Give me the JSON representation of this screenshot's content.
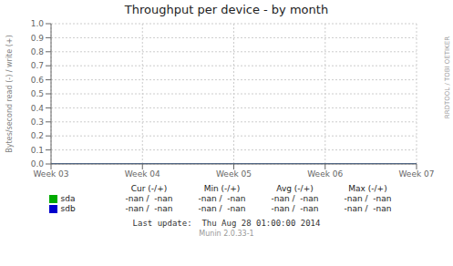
{
  "chart_data": {
    "type": "line",
    "title": "Throughput per device - by month",
    "y_label": "Bytes/second read (-) / write (+)",
    "categories": [
      "Week 03",
      "Week 04",
      "Week 05",
      "Week 06",
      "Week 07"
    ],
    "series": [
      {
        "name": "sda",
        "color": "#00aa00",
        "values": [
          0.0,
          0.0,
          0.0,
          0.0,
          0.0
        ],
        "legend_values": [
          "-nan /  -nan",
          "-nan /  -nan",
          "-nan /  -nan",
          "-nan /  -nan"
        ]
      },
      {
        "name": "sdb",
        "color": "#0000cc",
        "values": [
          0.0,
          0.0,
          0.0,
          0.0,
          0.0
        ],
        "legend_values": [
          "-nan /  -nan",
          "-nan /  -nan",
          "-nan /  -nan",
          "-nan /  -nan"
        ]
      }
    ],
    "ylim": [
      0.0,
      1.0
    ],
    "yticks": [
      {
        "value": 0.0,
        "label": "0.0"
      },
      0.1,
      0.2,
      0.3,
      0.4,
      0.5,
      0.6,
      0.7,
      0.8,
      0.9,
      {
        "value": 1.0,
        "label": "1.0"
      }
    ],
    "grid": true,
    "legend": "bottom",
    "legend_columns": [
      "Cur (-/+)",
      "Min (-/+)",
      "Avg (-/+)",
      "Max (-/+)"
    ],
    "annotations": [
      "RRDTOOL / TOBI OETIKER",
      "Last update:  Thu Aug 28 01:00:00 2014",
      "Munin 2.0.33-1"
    ]
  }
}
